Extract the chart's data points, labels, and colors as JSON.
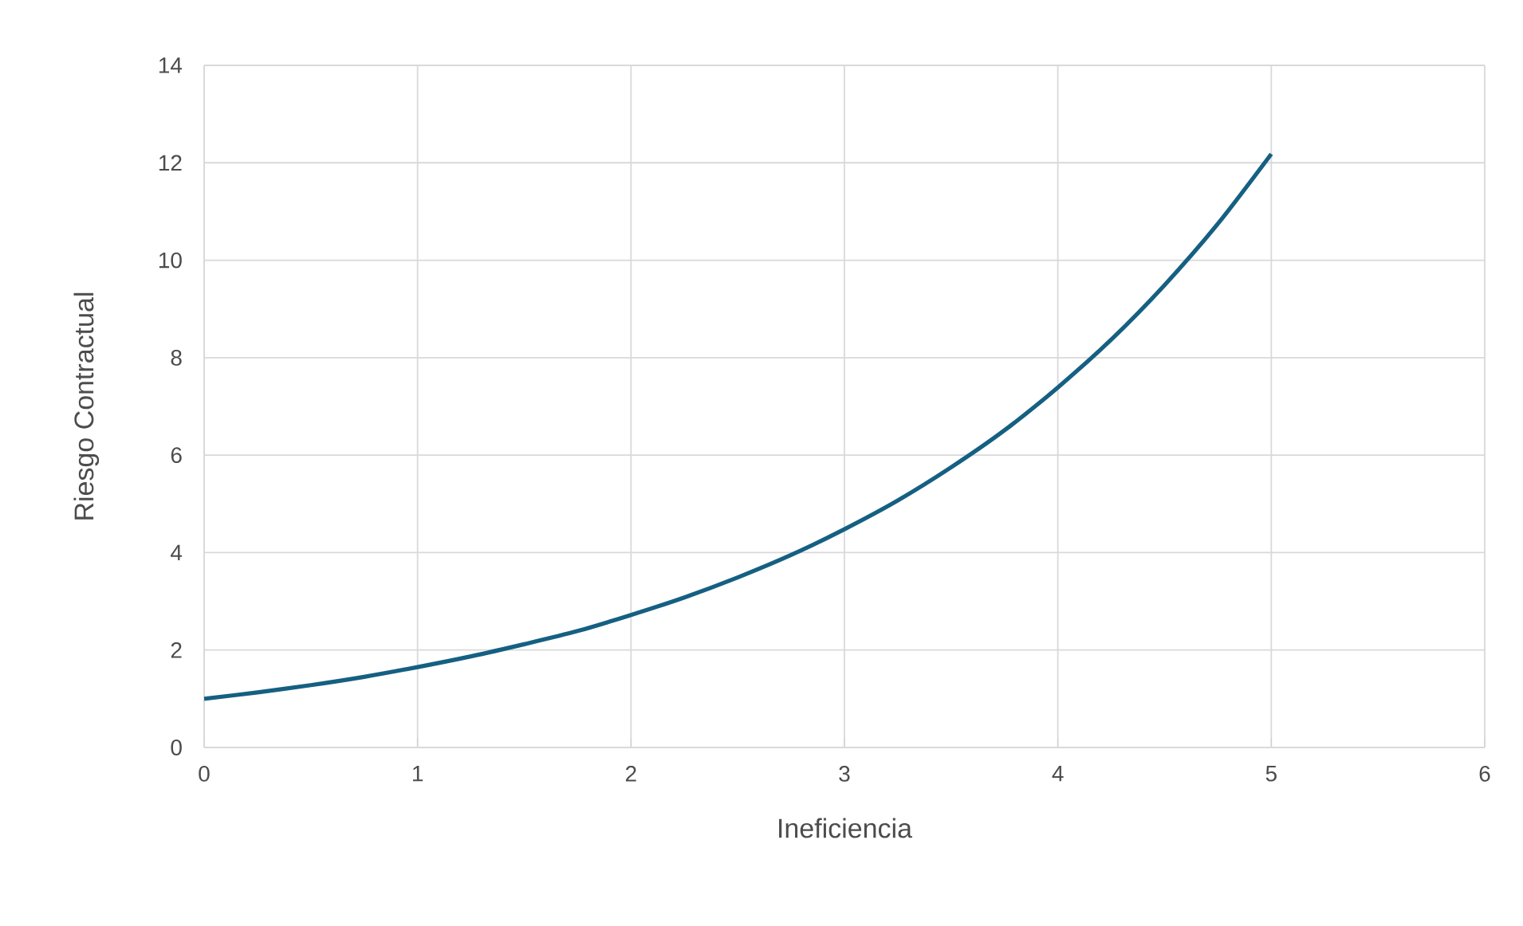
{
  "chart_data": {
    "type": "line",
    "xlabel": "Ineficiencia",
    "ylabel": "Riesgo Contractual",
    "x": [
      0,
      0.25,
      0.5,
      0.75,
      1,
      1.25,
      1.5,
      1.75,
      2,
      2.25,
      2.5,
      2.75,
      3,
      3.25,
      3.5,
      3.75,
      4,
      4.25,
      4.5,
      4.75,
      5
    ],
    "series": [
      {
        "color": "#156082",
        "values": [
          1,
          1.13,
          1.28,
          1.45,
          1.65,
          1.87,
          2.12,
          2.39,
          2.72,
          3.08,
          3.49,
          3.95,
          4.48,
          5.07,
          5.75,
          6.51,
          7.39,
          8.37,
          9.49,
          10.75,
          12.18
        ]
      }
    ],
    "xlim": [
      0,
      6
    ],
    "ylim": [
      0,
      14
    ],
    "xticks": [
      0,
      1,
      2,
      3,
      4,
      5,
      6
    ],
    "yticks": [
      0,
      2,
      4,
      6,
      8,
      10,
      12,
      14
    ],
    "grid": true,
    "marker": "none",
    "line_style": "solid"
  }
}
